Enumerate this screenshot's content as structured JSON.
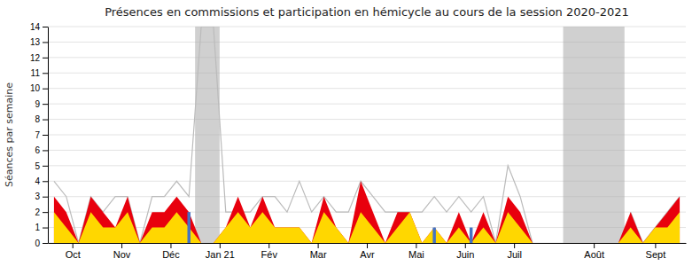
{
  "chart_data": {
    "type": "area",
    "title": "Présences en commissions et participation en hémicycle au cours de la session 2020-2021",
    "ylabel": "Séances par semaine",
    "x": [
      0,
      1,
      2,
      3,
      4,
      5,
      6,
      7,
      8,
      9,
      10,
      11,
      12,
      13,
      14,
      15,
      16,
      17,
      18,
      19,
      20,
      21,
      22,
      23,
      24,
      25,
      26,
      27,
      28,
      29,
      30,
      31,
      32,
      33,
      34,
      35,
      36,
      37,
      38,
      39,
      40,
      41,
      42,
      43,
      44,
      45,
      46,
      47,
      48,
      49,
      50,
      51
    ],
    "xlim": [
      -0.5,
      51.5
    ],
    "xticks": [
      {
        "value": 1.5,
        "label": "Oct"
      },
      {
        "value": 5.5,
        "label": "Nov"
      },
      {
        "value": 9.5,
        "label": "Déc"
      },
      {
        "value": 13.5,
        "label": "Jan 21"
      },
      {
        "value": 17.5,
        "label": "Fév"
      },
      {
        "value": 21.5,
        "label": "Mar"
      },
      {
        "value": 25.5,
        "label": "Avr"
      },
      {
        "value": 29.5,
        "label": "Mai"
      },
      {
        "value": 33.5,
        "label": "Juin"
      },
      {
        "value": 37.5,
        "label": "Juil"
      },
      {
        "value": 44.0,
        "label": "Août"
      },
      {
        "value": 49.0,
        "label": "Sept"
      }
    ],
    "ylim": [
      0,
      14
    ],
    "yticks": [
      0,
      1,
      2,
      3,
      4,
      5,
      6,
      7,
      8,
      9,
      10,
      11,
      12,
      13,
      14
    ],
    "grid": true,
    "bands": [
      {
        "start": 11.5,
        "end": 13.5
      },
      {
        "start": 41.5,
        "end": 46.5
      }
    ],
    "series": [
      {
        "type": "area",
        "color": "#e8000d",
        "values": [
          3,
          2,
          0,
          3,
          2,
          1,
          3,
          0,
          2,
          2,
          3,
          2,
          0,
          0,
          1,
          3,
          1,
          3,
          1,
          1,
          1,
          0,
          3,
          1,
          0,
          4,
          2,
          0,
          2,
          2,
          0,
          1,
          0,
          2,
          0,
          2,
          0,
          3,
          2,
          0,
          0,
          0,
          0,
          0,
          0,
          0,
          0,
          2,
          0,
          1,
          2,
          3
        ]
      },
      {
        "type": "area",
        "color": "#ffd700",
        "values": [
          2,
          1,
          0,
          2,
          1,
          1,
          2,
          0,
          1,
          1,
          2,
          1,
          0,
          0,
          1,
          2,
          1,
          2,
          1,
          1,
          1,
          0,
          2,
          1,
          0,
          2,
          1,
          0,
          1,
          2,
          0,
          1,
          0,
          1,
          0,
          1,
          0,
          2,
          1,
          0,
          0,
          0,
          0,
          0,
          0,
          0,
          0,
          1,
          0,
          1,
          1,
          2
        ]
      },
      {
        "type": "line",
        "color": "#bbbbbb",
        "values": [
          4,
          3,
          0,
          3,
          2,
          3,
          3,
          0,
          3,
          3,
          4,
          3,
          14,
          14,
          2,
          2,
          2,
          3,
          3,
          2,
          4,
          2,
          3,
          2,
          2,
          4,
          3,
          2,
          2,
          2,
          2,
          3,
          2,
          3,
          2,
          3,
          0,
          5,
          3,
          0,
          null,
          null,
          null,
          null,
          null,
          null,
          null,
          2,
          0,
          1,
          2,
          3
        ]
      },
      {
        "type": "bar",
        "color": "#4472c4",
        "x": [
          11,
          31,
          34
        ],
        "values": [
          2,
          1,
          1
        ]
      }
    ]
  }
}
